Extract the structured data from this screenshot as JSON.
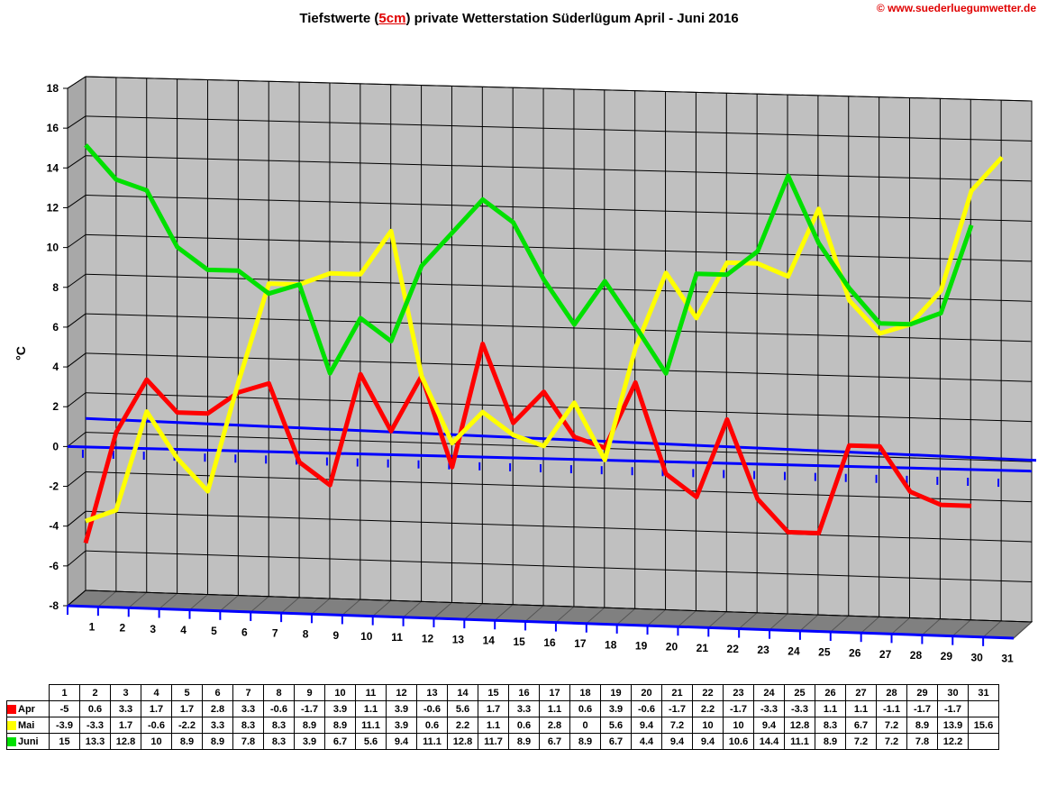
{
  "title": {
    "pre": "Tiefstwerte (",
    "hl": "5cm",
    "post": ") private Wetterstation Süderlügum April - Juni 2016"
  },
  "copyright": "© www.suederluegumwetter.de",
  "chart_data": {
    "type": "line",
    "title": "Tiefstwerte (5cm) private Wetterstation Süderlügum April - Juni 2016",
    "ylabel": "°C",
    "xlabel": "",
    "ylim": [
      -8,
      18
    ],
    "yticks": [
      -8,
      -6,
      -4,
      -2,
      0,
      2,
      4,
      6,
      8,
      10,
      12,
      14,
      16,
      18
    ],
    "categories": [
      "1",
      "2",
      "3",
      "4",
      "5",
      "6",
      "7",
      "8",
      "9",
      "10",
      "11",
      "12",
      "13",
      "14",
      "15",
      "16",
      "17",
      "18",
      "19",
      "20",
      "21",
      "22",
      "23",
      "24",
      "25",
      "26",
      "27",
      "28",
      "29",
      "30",
      "31"
    ],
    "grid": true,
    "legend": "table-bottom",
    "series": [
      {
        "name": "Apr",
        "color": "#ff0000",
        "values": [
          -5,
          0.6,
          3.3,
          1.7,
          1.7,
          2.8,
          3.3,
          -0.6,
          -1.7,
          3.9,
          1.1,
          3.9,
          -0.6,
          5.6,
          1.7,
          3.3,
          1.1,
          0.6,
          3.9,
          -0.6,
          -1.7,
          2.2,
          -1.7,
          -3.3,
          -3.3,
          1.1,
          1.1,
          -1.1,
          -1.7,
          -1.7,
          null
        ]
      },
      {
        "name": "Mai",
        "color": "#ffff00",
        "values": [
          -3.9,
          -3.3,
          1.7,
          -0.6,
          -2.2,
          3.3,
          8.3,
          8.3,
          8.9,
          8.9,
          11.1,
          3.9,
          0.6,
          2.2,
          1.1,
          0.6,
          2.8,
          0,
          5.6,
          9.4,
          7.2,
          10,
          10,
          9.4,
          12.8,
          8.3,
          6.7,
          7.2,
          8.9,
          13.9,
          15.6
        ]
      },
      {
        "name": "Juni",
        "color": "#00e000",
        "values": [
          15,
          13.3,
          12.8,
          10,
          8.9,
          8.9,
          7.8,
          8.3,
          3.9,
          6.7,
          5.6,
          9.4,
          11.1,
          12.8,
          11.7,
          8.9,
          6.7,
          8.9,
          6.7,
          4.4,
          9.4,
          9.4,
          10.6,
          14.4,
          11.1,
          8.9,
          7.2,
          7.2,
          7.8,
          12.2,
          null
        ]
      }
    ]
  }
}
